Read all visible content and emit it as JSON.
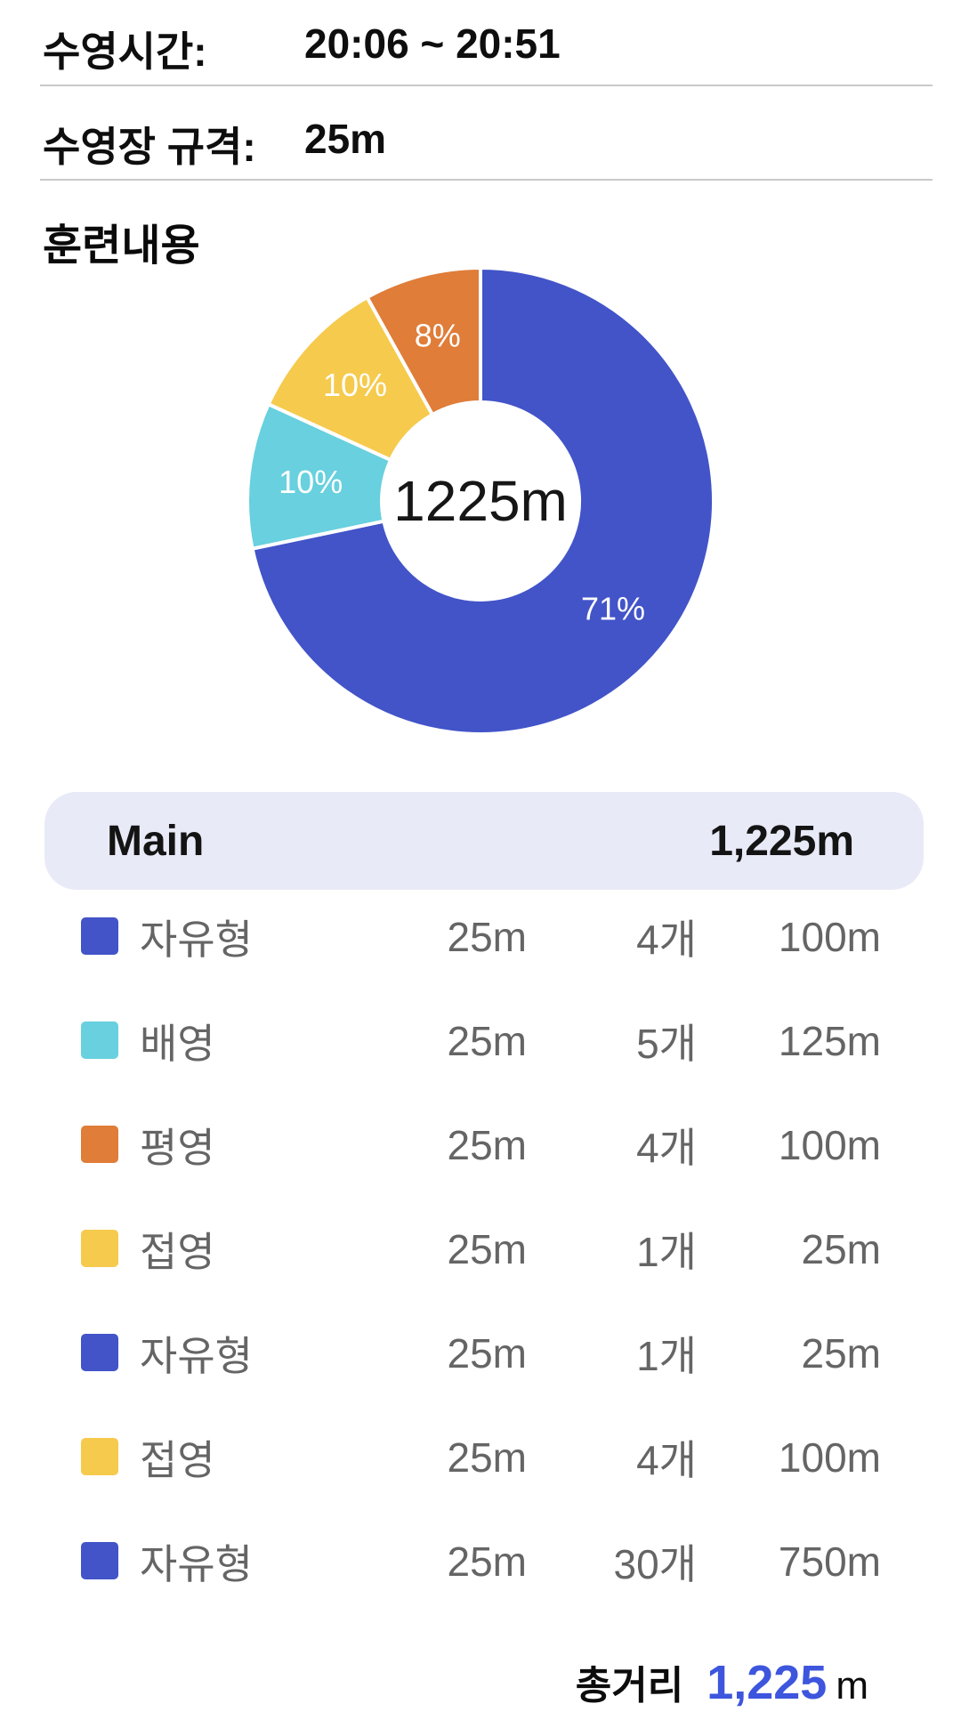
{
  "header": {
    "rows": [
      {
        "label": "수영시간:",
        "value": "20:06 ~ 20:51"
      },
      {
        "label": "수영장 규격:",
        "value": "25m"
      }
    ]
  },
  "section": {
    "title": "훈련내용"
  },
  "chart_data": {
    "type": "pie",
    "variant": "donut",
    "title": "훈련내용",
    "center_label": "1225m",
    "start_angle_deg": 0,
    "direction": "clockwise",
    "legend_position": "none",
    "slices": [
      {
        "name": "자유형",
        "percent": 71,
        "label": "71%",
        "color": "#4254c8"
      },
      {
        "name": "배영",
        "percent": 10,
        "label": "10%",
        "color": "#68d0de"
      },
      {
        "name": "접영",
        "percent": 10,
        "label": "10%",
        "color": "#f6ca4d"
      },
      {
        "name": "평영",
        "percent": 8,
        "label": "8%",
        "color": "#df7d39"
      }
    ]
  },
  "table": {
    "header": {
      "title": "Main",
      "total": "1,225m"
    },
    "rows": [
      {
        "stroke": "자유형",
        "color": "#4254c8",
        "lap": "25m",
        "count": "4개",
        "distance": "100m"
      },
      {
        "stroke": "배영",
        "color": "#68d0de",
        "lap": "25m",
        "count": "5개",
        "distance": "125m"
      },
      {
        "stroke": "평영",
        "color": "#df7d39",
        "lap": "25m",
        "count": "4개",
        "distance": "100m"
      },
      {
        "stroke": "접영",
        "color": "#f6ca4d",
        "lap": "25m",
        "count": "1개",
        "distance": "25m"
      },
      {
        "stroke": "자유형",
        "color": "#4254c8",
        "lap": "25m",
        "count": "1개",
        "distance": "25m"
      },
      {
        "stroke": "접영",
        "color": "#f6ca4d",
        "lap": "25m",
        "count": "4개",
        "distance": "100m"
      },
      {
        "stroke": "자유형",
        "color": "#4254c8",
        "lap": "25m",
        "count": "30개",
        "distance": "750m"
      }
    ],
    "footer": {
      "label": "총거리",
      "value": "1,225",
      "unit": "m"
    }
  }
}
